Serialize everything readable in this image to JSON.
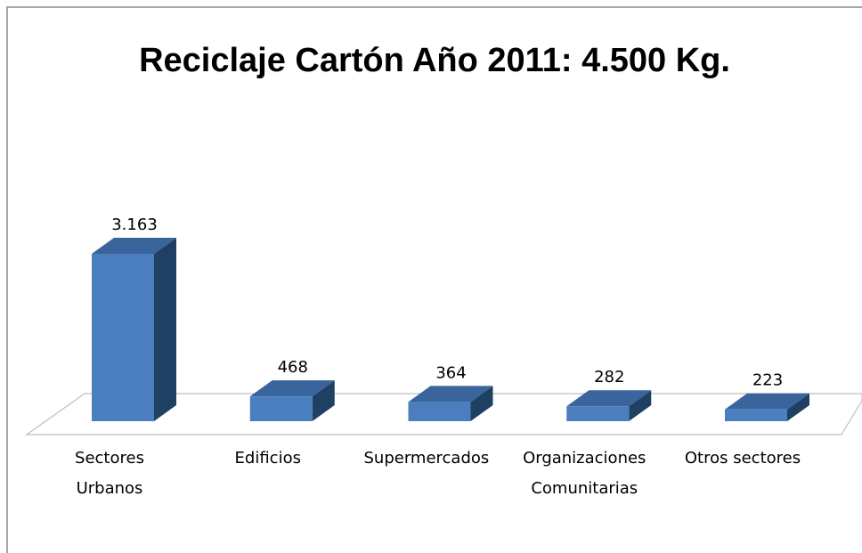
{
  "chart_data": {
    "type": "bar3d",
    "title": "Reciclaje Cartón Año 2011: 4.500 Kg.",
    "categories": [
      "Sectores Urbanos",
      "Edificios",
      "Supermercados",
      "Organizaciones Comunitarias",
      "Otros sectores"
    ],
    "values": [
      3163,
      468,
      364,
      282,
      223
    ],
    "value_labels": [
      "3.163",
      "468",
      "364",
      "282",
      "223"
    ],
    "color": "#4a7ebf"
  }
}
